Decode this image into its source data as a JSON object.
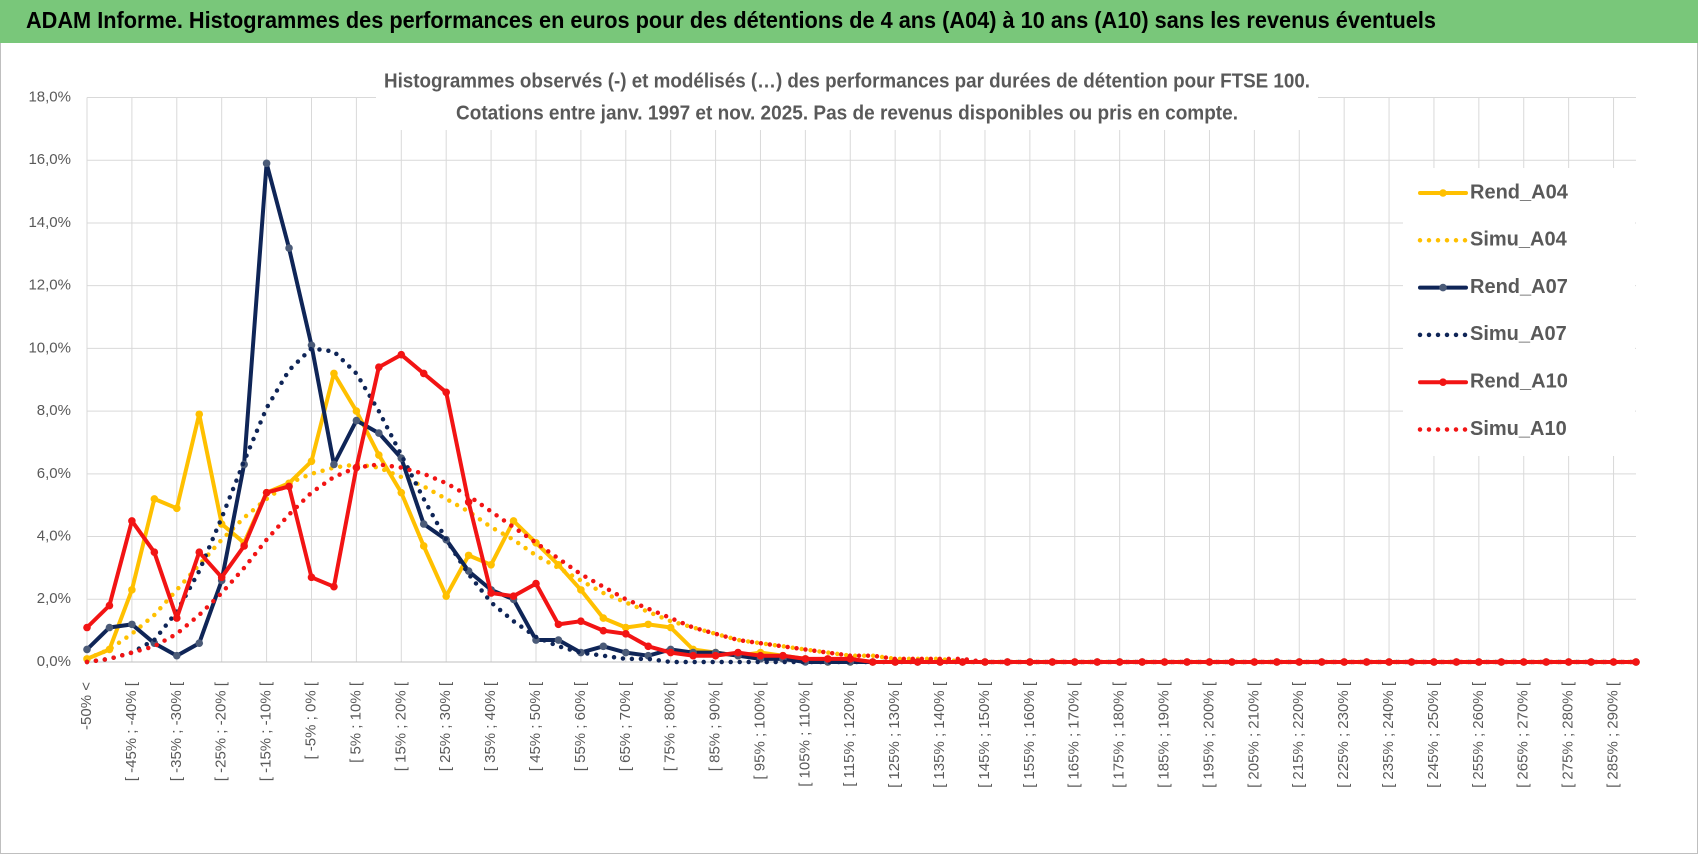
{
  "header": {
    "title": "ADAM Informe. Histogrammes des performances en euros pour des détentions de 4 ans (A04) à 10 ans (A10) sans les revenus éventuels"
  },
  "chart_data": {
    "type": "line",
    "title": "Histogrammes observés (-) et modélisés (…) des performances par durées de détention pour FTSE 100.",
    "subtitle": "Cotations entre janv. 1997 et nov. 2025. Pas de revenus disponibles ou pris en compte.",
    "categories": [
      "-50% <",
      null,
      "[ -45% ; -40% [",
      null,
      "[ -35% ; -30% [",
      null,
      "[ -25% ; -20% [",
      null,
      "[ -15% ; -10% [",
      null,
      "[ -5% ; 0% [",
      null,
      "[ 5% ; 10% [",
      null,
      "[ 15% ; 20% [",
      null,
      "[ 25% ; 30% [",
      null,
      "[ 35% ; 40% [",
      null,
      "[ 45% ; 50% [",
      null,
      "[ 55% ; 60% [",
      null,
      "[ 65% ; 70% [",
      null,
      "[ 75% ; 80% [",
      null,
      "[ 85% ; 90% [",
      null,
      "[ 95% ; 100% [",
      null,
      "[ 105% ; 110% [",
      null,
      "[ 115% ; 120% [",
      null,
      "[ 125% ; 130% [",
      null,
      "[ 135% ; 140% [",
      null,
      "[ 145% ; 150% [",
      null,
      "[ 155% ; 160% [",
      null,
      "[ 165% ; 170% [",
      null,
      "[ 175% ; 180% [",
      null,
      "[ 185% ; 190% [",
      null,
      "[ 195% ; 200% [",
      null,
      "[ 205% ; 210% [",
      null,
      "[ 215% ; 220% [",
      null,
      "[ 225% ; 230% [",
      null,
      "[ 235% ; 240% [",
      null,
      "[ 245% ; 250% [",
      null,
      "[ 255% ; 260% [",
      null,
      "[ 265% ; 270% [",
      null,
      "[ 275% ; 280% [",
      null,
      "[ 285% ; 290% [",
      null
    ],
    "ylim": [
      0,
      18
    ],
    "yticks": [
      {
        "value": 0,
        "label": "0,0%"
      },
      {
        "value": 2,
        "label": "2,0%"
      },
      {
        "value": 4,
        "label": "4,0%"
      },
      {
        "value": 6,
        "label": "6,0%"
      },
      {
        "value": 8,
        "label": "8,0%"
      },
      {
        "value": 10,
        "label": "10,0%"
      },
      {
        "value": 12,
        "label": "12,0%"
      },
      {
        "value": 14,
        "label": "14,0%"
      },
      {
        "value": 16,
        "label": "16,0%"
      },
      {
        "value": 18,
        "label": "18,0%"
      }
    ],
    "grid": true,
    "legend": "right",
    "series": [
      {
        "name": "Rend_A04",
        "color": "#ffc000",
        "marker_color": "#ffc000",
        "style": "solid",
        "markers": true,
        "values": [
          0.1,
          0.4,
          2.3,
          5.2,
          4.9,
          7.9,
          4.4,
          3.8,
          5.4,
          5.7,
          6.4,
          9.2,
          8.0,
          6.6,
          5.4,
          3.7,
          2.1,
          3.4,
          3.1,
          4.5,
          3.8,
          3.1,
          2.3,
          1.4,
          1.1,
          1.2,
          1.1,
          0.4,
          0.3,
          0.2,
          0.3,
          0.2,
          0.1,
          0,
          0,
          0,
          0,
          0,
          0,
          0,
          0,
          0,
          0,
          0,
          0,
          0,
          0,
          0,
          0,
          0,
          0,
          0,
          0,
          0,
          0,
          0,
          0,
          0,
          0,
          0,
          0,
          0,
          0,
          0,
          0,
          0,
          0,
          0,
          0,
          0
        ]
      },
      {
        "name": "Simu_A04",
        "color": "#ffc000",
        "style": "dotted",
        "markers": false,
        "values": [
          0.1,
          0.4,
          0.9,
          1.5,
          2.3,
          3.1,
          3.9,
          4.6,
          5.2,
          5.7,
          6.0,
          6.2,
          6.3,
          6.2,
          5.9,
          5.6,
          5.2,
          4.8,
          4.3,
          3.9,
          3.4,
          3.0,
          2.6,
          2.2,
          1.9,
          1.6,
          1.3,
          1.1,
          0.9,
          0.7,
          0.6,
          0.5,
          0.4,
          0.3,
          0.2,
          0.2,
          0.1,
          0.1,
          0.1,
          0,
          0,
          0,
          0,
          0,
          0,
          0,
          0,
          0,
          0,
          0,
          0,
          0,
          0,
          0,
          0,
          0,
          0,
          0,
          0,
          0,
          0,
          0,
          0,
          0,
          0,
          0,
          0,
          0,
          0,
          0
        ]
      },
      {
        "name": "Rend_A07",
        "color": "#0f2557",
        "marker_color": "#4b5b78",
        "style": "solid",
        "markers": true,
        "values": [
          0.4,
          1.1,
          1.2,
          0.6,
          0.2,
          0.6,
          2.6,
          6.3,
          15.9,
          13.2,
          10.1,
          6.3,
          7.7,
          7.3,
          6.5,
          4.4,
          3.9,
          2.9,
          2.3,
          2.0,
          0.7,
          0.7,
          0.3,
          0.5,
          0.3,
          0.2,
          0.4,
          0.3,
          0.3,
          0.2,
          0.1,
          0.1,
          0,
          0,
          0,
          0,
          0,
          0,
          0,
          0,
          0,
          0,
          0,
          0,
          0,
          0,
          0,
          0,
          0,
          0,
          0,
          0,
          0,
          0,
          0,
          0,
          0,
          0,
          0,
          0,
          0,
          0,
          0,
          0,
          0,
          0,
          0,
          0,
          0,
          0
        ]
      },
      {
        "name": "Simu_A07",
        "color": "#0f2557",
        "style": "dotted",
        "markers": false,
        "values": [
          0,
          0.1,
          0.3,
          0.7,
          1.6,
          2.9,
          4.6,
          6.4,
          8.1,
          9.3,
          10.0,
          9.9,
          9.2,
          8.0,
          6.6,
          5.2,
          3.9,
          2.8,
          1.9,
          1.3,
          0.8,
          0.5,
          0.3,
          0.2,
          0.1,
          0.1,
          0,
          0,
          0,
          0,
          0,
          0,
          0,
          0,
          0,
          0,
          0,
          0,
          0,
          0,
          0,
          0,
          0,
          0,
          0,
          0,
          0,
          0,
          0,
          0,
          0,
          0,
          0,
          0,
          0,
          0,
          0,
          0,
          0,
          0,
          0,
          0,
          0,
          0,
          0,
          0,
          0,
          0,
          0,
          0
        ]
      },
      {
        "name": "Rend_A10",
        "color": "#f21414",
        "marker_color": "#f21414",
        "style": "solid",
        "markers": true,
        "values": [
          1.1,
          1.8,
          4.5,
          3.5,
          1.4,
          3.5,
          2.7,
          3.7,
          5.4,
          5.6,
          2.7,
          2.4,
          6.2,
          9.4,
          9.8,
          9.2,
          8.6,
          5.1,
          2.2,
          2.1,
          2.5,
          1.2,
          1.3,
          1.0,
          0.9,
          0.5,
          0.3,
          0.2,
          0.2,
          0.3,
          0.2,
          0.2,
          0.1,
          0.1,
          0.1,
          0,
          0,
          0,
          0,
          0,
          0,
          0,
          0,
          0,
          0,
          0,
          0,
          0,
          0,
          0,
          0,
          0,
          0,
          0,
          0,
          0,
          0,
          0,
          0,
          0,
          0,
          0,
          0,
          0,
          0,
          0,
          0,
          0,
          0,
          0
        ]
      },
      {
        "name": "Simu_A10",
        "color": "#f21414",
        "style": "dotted",
        "markers": false,
        "values": [
          0,
          0.1,
          0.3,
          0.5,
          0.9,
          1.5,
          2.2,
          3.0,
          3.9,
          4.7,
          5.4,
          5.9,
          6.2,
          6.3,
          6.2,
          6.0,
          5.7,
          5.3,
          4.8,
          4.3,
          3.8,
          3.3,
          2.8,
          2.4,
          2.0,
          1.7,
          1.4,
          1.1,
          0.9,
          0.7,
          0.6,
          0.5,
          0.4,
          0.3,
          0.2,
          0.2,
          0.1,
          0.1,
          0.1,
          0.1,
          0,
          0,
          0,
          0,
          0,
          0,
          0,
          0,
          0,
          0,
          0,
          0,
          0,
          0,
          0,
          0,
          0,
          0,
          0,
          0,
          0,
          0,
          0,
          0,
          0,
          0,
          0,
          0,
          0,
          0
        ]
      }
    ]
  }
}
